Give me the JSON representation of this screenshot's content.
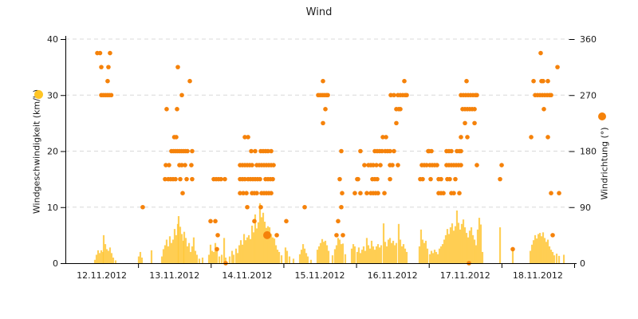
{
  "chart_data": {
    "type": "mixed",
    "title": "Wind",
    "x_axis": {
      "tick_dates": [
        "12.11.2012",
        "13.11.2012",
        "14.11.2012",
        "15.11.2012",
        "16.11.2012",
        "17.11.2012",
        "18.11.2012"
      ],
      "days_shown": 7,
      "note": "x values in series are days after 12.11.2012 00:00"
    },
    "y_left": {
      "label": "Windgeschwindigkeit (km/h)",
      "min": 0,
      "max": 40,
      "ticks": [
        0,
        10,
        20,
        30,
        40
      ]
    },
    "y_right": {
      "label": "Windrichtung (°)",
      "min": 0,
      "max": 360,
      "ticks": [
        0,
        90,
        180,
        270,
        360
      ]
    },
    "grid": {
      "style": "dashed",
      "color": "#D8D8D8"
    },
    "series": [
      {
        "name": "Windgeschwindigkeit",
        "type": "bar",
        "axis": "left",
        "unit": "km/h",
        "color": "#FFC531",
        "points": [
          [
            0.406,
            0.6
          ],
          [
            0.428,
            1.5
          ],
          [
            0.45,
            2.3
          ],
          [
            0.472,
            1.8
          ],
          [
            0.494,
            2.3
          ],
          [
            0.516,
            2.0
          ],
          [
            0.527,
            5.0
          ],
          [
            0.549,
            3.4
          ],
          [
            0.57,
            2.5
          ],
          [
            0.592,
            2.2
          ],
          [
            0.614,
            2.8
          ],
          [
            0.636,
            1.8
          ],
          [
            0.658,
            1.0
          ],
          [
            0.691,
            0.5
          ],
          [
            1.009,
            1.2
          ],
          [
            1.031,
            2.0
          ],
          [
            1.053,
            1.0
          ],
          [
            1.185,
            2.3
          ],
          [
            1.328,
            1.2
          ],
          [
            1.349,
            2.5
          ],
          [
            1.371,
            3.2
          ],
          [
            1.393,
            4.2
          ],
          [
            1.415,
            3.0
          ],
          [
            1.437,
            4.8
          ],
          [
            1.459,
            3.6
          ],
          [
            1.481,
            4.2
          ],
          [
            1.503,
            6.1
          ],
          [
            1.525,
            5.0
          ],
          [
            1.547,
            7.0
          ],
          [
            1.558,
            8.4
          ],
          [
            1.58,
            6.5
          ],
          [
            1.602,
            5.2
          ],
          [
            1.624,
            4.0
          ],
          [
            1.635,
            5.6
          ],
          [
            1.657,
            4.5
          ],
          [
            1.679,
            3.0
          ],
          [
            1.701,
            3.6
          ],
          [
            1.723,
            2.0
          ],
          [
            1.744,
            3.0
          ],
          [
            1.766,
            4.6
          ],
          [
            1.788,
            2.2
          ],
          [
            1.81,
            1.5
          ],
          [
            1.843,
            0.8
          ],
          [
            1.887,
            1.0
          ],
          [
            1.975,
            1.5
          ],
          [
            1.997,
            3.3
          ],
          [
            2.019,
            2.2
          ],
          [
            2.041,
            2.0
          ],
          [
            2.063,
            3.6
          ],
          [
            2.085,
            2.6
          ],
          [
            2.118,
            1.2
          ],
          [
            2.151,
            1.5
          ],
          [
            2.184,
            4.5
          ],
          [
            2.205,
            1.0
          ],
          [
            2.26,
            1.2
          ],
          [
            2.293,
            2.2
          ],
          [
            2.315,
            1.5
          ],
          [
            2.348,
            2.6
          ],
          [
            2.37,
            1.8
          ],
          [
            2.392,
            3.2
          ],
          [
            2.414,
            4.1
          ],
          [
            2.436,
            3.3
          ],
          [
            2.458,
            5.2
          ],
          [
            2.48,
            4.1
          ],
          [
            2.502,
            4.6
          ],
          [
            2.524,
            5.0
          ],
          [
            2.546,
            4.3
          ],
          [
            2.568,
            6.7
          ],
          [
            2.59,
            5.5
          ],
          [
            2.611,
            8.7
          ],
          [
            2.633,
            6.2
          ],
          [
            2.655,
            7.3
          ],
          [
            2.677,
            10.7
          ],
          [
            2.699,
            8.2
          ],
          [
            2.721,
            9.0
          ],
          [
            2.743,
            7.4
          ],
          [
            2.765,
            6.3
          ],
          [
            2.787,
            6.6
          ],
          [
            2.809,
            6.4
          ],
          [
            2.831,
            5.2
          ],
          [
            2.853,
            4.6
          ],
          [
            2.875,
            4.4
          ],
          [
            2.897,
            3.2
          ],
          [
            2.919,
            2.4
          ],
          [
            2.941,
            2.0
          ],
          [
            2.974,
            1.4
          ],
          [
            3.028,
            2.8
          ],
          [
            3.05,
            2.2
          ],
          [
            3.083,
            1.2
          ],
          [
            3.138,
            0.8
          ],
          [
            3.226,
            1.6
          ],
          [
            3.248,
            2.4
          ],
          [
            3.27,
            3.4
          ],
          [
            3.292,
            2.6
          ],
          [
            3.314,
            1.8
          ],
          [
            3.335,
            1.2
          ],
          [
            3.379,
            0.6
          ],
          [
            3.467,
            2.4
          ],
          [
            3.489,
            3.0
          ],
          [
            3.511,
            3.6
          ],
          [
            3.533,
            4.3
          ],
          [
            3.555,
            3.8
          ],
          [
            3.577,
            4.0
          ],
          [
            3.599,
            3.2
          ],
          [
            3.621,
            2.2
          ],
          [
            3.675,
            1.4
          ],
          [
            3.708,
            2.5
          ],
          [
            3.73,
            3.2
          ],
          [
            3.752,
            4.5
          ],
          [
            3.774,
            4.2
          ],
          [
            3.796,
            3.4
          ],
          [
            3.818,
            3.5
          ],
          [
            3.851,
            1.6
          ],
          [
            3.939,
            2.6
          ],
          [
            3.961,
            3.4
          ],
          [
            3.982,
            3.0
          ],
          [
            4.015,
            2.0
          ],
          [
            4.037,
            2.8
          ],
          [
            4.059,
            1.8
          ],
          [
            4.081,
            2.4
          ],
          [
            4.103,
            3.0
          ],
          [
            4.125,
            2.2
          ],
          [
            4.147,
            4.5
          ],
          [
            4.169,
            3.2
          ],
          [
            4.191,
            2.6
          ],
          [
            4.213,
            4.0
          ],
          [
            4.235,
            3.0
          ],
          [
            4.257,
            2.4
          ],
          [
            4.279,
            3.0
          ],
          [
            4.301,
            3.4
          ],
          [
            4.323,
            2.8
          ],
          [
            4.345,
            3.2
          ],
          [
            4.378,
            7.1
          ],
          [
            4.4,
            3.8
          ],
          [
            4.422,
            3.0
          ],
          [
            4.444,
            4.2
          ],
          [
            4.466,
            4.5
          ],
          [
            4.488,
            3.6
          ],
          [
            4.51,
            4.0
          ],
          [
            4.531,
            3.2
          ],
          [
            4.553,
            3.6
          ],
          [
            4.586,
            7.0
          ],
          [
            4.608,
            4.2
          ],
          [
            4.63,
            3.0
          ],
          [
            4.652,
            3.4
          ],
          [
            4.674,
            2.6
          ],
          [
            4.696,
            2.0
          ],
          [
            4.871,
            3.0
          ],
          [
            4.893,
            6.0
          ],
          [
            4.915,
            4.2
          ],
          [
            4.937,
            3.6
          ],
          [
            4.959,
            4.0
          ],
          [
            4.981,
            2.6
          ],
          [
            5.014,
            1.6
          ],
          [
            5.036,
            2.2
          ],
          [
            5.058,
            1.8
          ],
          [
            5.08,
            2.4
          ],
          [
            5.102,
            2.0
          ],
          [
            5.124,
            1.6
          ],
          [
            5.146,
            2.6
          ],
          [
            5.168,
            3.0
          ],
          [
            5.19,
            3.4
          ],
          [
            5.212,
            4.2
          ],
          [
            5.233,
            5.0
          ],
          [
            5.255,
            6.1
          ],
          [
            5.277,
            5.2
          ],
          [
            5.299,
            6.4
          ],
          [
            5.321,
            7.1
          ],
          [
            5.343,
            5.8
          ],
          [
            5.365,
            6.6
          ],
          [
            5.387,
            9.4
          ],
          [
            5.409,
            7.2
          ],
          [
            5.431,
            6.0
          ],
          [
            5.453,
            7.0
          ],
          [
            5.475,
            7.8
          ],
          [
            5.497,
            6.4
          ],
          [
            5.519,
            5.4
          ],
          [
            5.541,
            4.6
          ],
          [
            5.563,
            5.8
          ],
          [
            5.585,
            6.4
          ],
          [
            5.607,
            5.0
          ],
          [
            5.629,
            4.2
          ],
          [
            5.65,
            3.2
          ],
          [
            5.672,
            6.0
          ],
          [
            5.694,
            8.1
          ],
          [
            5.716,
            6.9
          ],
          [
            5.738,
            2.0
          ],
          [
            5.98,
            6.4
          ],
          [
            6.155,
            2.6
          ],
          [
            6.397,
            2.2
          ],
          [
            6.419,
            3.3
          ],
          [
            6.441,
            4.1
          ],
          [
            6.463,
            5.0
          ],
          [
            6.485,
            4.4
          ],
          [
            6.507,
            5.2
          ],
          [
            6.529,
            5.4
          ],
          [
            6.55,
            4.8
          ],
          [
            6.572,
            5.5
          ],
          [
            6.594,
            4.5
          ],
          [
            6.616,
            3.8
          ],
          [
            6.638,
            4.2
          ],
          [
            6.66,
            3.0
          ],
          [
            6.682,
            2.4
          ],
          [
            6.704,
            2.0
          ],
          [
            6.726,
            1.4
          ],
          [
            6.759,
            1.7
          ],
          [
            6.792,
            1.3
          ],
          [
            6.858,
            1.5
          ]
        ]
      },
      {
        "name": "Windrichtung",
        "type": "scatter",
        "axis": "right",
        "unit": "°",
        "color": "#F5820A",
        "points_by_direction": {
          "0": [
            2.205,
            5.552
          ],
          "22.5": [
            2.085,
            6.155
          ],
          "45": [
            2.096,
            2.908,
            3.73,
            3.818,
            6.704
          ],
          "67.5": [
            1.997,
            2.063,
            2.6,
            3.039,
            3.752
          ],
          "90": [
            1.064,
            2.502,
            2.688,
            3.292,
            3.796
          ],
          "112.5": [
            1.613,
            2.403,
            2.447,
            2.491,
            2.568,
            2.6,
            2.633,
            2.699,
            2.732,
            2.765,
            2.798,
            2.831,
            3.807,
            3.982,
            4.059,
            4.147,
            4.202,
            4.235,
            4.268,
            4.301,
            4.389,
            5.135,
            5.168,
            5.201,
            5.31,
            5.343,
            5.42,
            6.682,
            6.792
          ],
          "135": [
            1.371,
            1.415,
            1.448,
            1.481,
            1.514,
            1.58,
            1.668,
            1.744,
            2.041,
            2.074,
            2.107,
            2.14,
            2.194,
            2.403,
            2.436,
            2.469,
            2.513,
            2.546,
            2.579,
            2.611,
            2.644,
            2.677,
            2.754,
            2.787,
            2.82,
            2.853,
            3.774,
            4.015,
            4.026,
            4.224,
            4.257,
            4.29,
            4.466,
            4.882,
            4.915,
            5.025,
            5.135,
            5.168,
            5.255,
            5.288,
            5.365,
            5.98
          ],
          "157.5": [
            1.382,
            1.426,
            1.569,
            1.602,
            1.646,
            1.733,
            2.403,
            2.436,
            2.469,
            2.502,
            2.535,
            2.568,
            2.633,
            2.666,
            2.699,
            2.732,
            2.765,
            2.798,
            2.831,
            2.864,
            4.114,
            4.169,
            4.202,
            4.235,
            4.279,
            4.334,
            4.466,
            4.499,
            4.575,
            4.904,
            4.937,
            4.97,
            5.014,
            5.047,
            5.08,
            5.113,
            5.244,
            5.277,
            5.31,
            5.343,
            5.376,
            5.409,
            5.442,
            5.661,
            6.002
          ],
          "180": [
            1.459,
            1.487,
            1.514,
            1.541,
            1.569,
            1.596,
            1.624,
            1.651,
            1.679,
            1.744,
            2.557,
            2.611,
            2.688,
            2.721,
            2.754,
            2.787,
            2.831,
            3.796,
            4.059,
            4.257,
            4.29,
            4.323,
            4.356,
            4.4,
            4.433,
            4.466,
            4.52,
            4.992,
            5.003,
            5.036,
            5.244,
            5.277,
            5.31,
            5.387,
            5.42,
            5.442
          ],
          "202.5": [
            1.498,
            1.525,
            2.469,
            2.513,
            4.367,
            4.411,
            5.442,
            5.53,
            6.408,
            6.638
          ],
          "225": [
            3.544,
            4.553,
            5.497,
            5.629
          ],
          "247.5": [
            1.393,
            1.536,
            3.577,
            4.553,
            4.586,
            4.608,
            5.464,
            5.497,
            5.53,
            5.563,
            5.596,
            5.629,
            6.583
          ],
          "270": [
            0.494,
            0.521,
            0.549,
            0.576,
            0.603,
            0.631,
            1.602,
            3.478,
            3.505,
            3.533,
            3.56,
            3.588,
            3.61,
            4.477,
            4.52,
            4.575,
            4.608,
            4.641,
            4.674,
            4.696,
            5.442,
            5.475,
            5.508,
            5.541,
            5.574,
            5.607,
            5.64,
            5.661,
            6.463,
            6.496,
            6.529,
            6.562,
            6.595,
            6.628,
            6.66,
            6.682
          ],
          "292.5": [
            0.581,
            1.712,
            3.544,
            4.663,
            5.519,
            6.441,
            6.55,
            6.572,
            6.638
          ],
          "315": [
            0.494,
            0.592,
            1.547,
            6.77
          ],
          "337.5": [
            0.439,
            0.477,
            0.614,
            6.539
          ]
        },
        "emphasized_points": [
          [
            2.776,
            45
          ]
        ]
      }
    ]
  },
  "legend": {
    "speed_marker_color": "#FFC525",
    "direction_marker_color": "#F5820A"
  },
  "colors": {
    "background": "#FFFFFF",
    "axis": "#000000",
    "grid": "#D8D8D8",
    "text": "#1A1A1A",
    "bar": "#FFC531",
    "dot": "#F5820A"
  }
}
